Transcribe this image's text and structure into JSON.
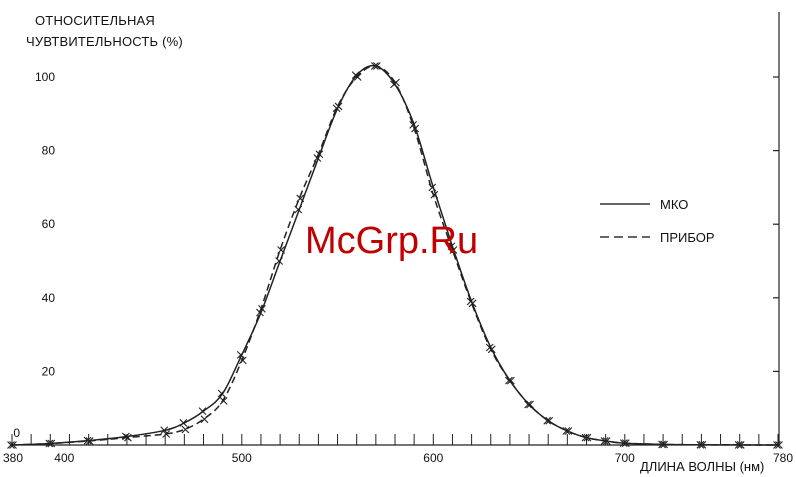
{
  "chart_data": {
    "type": "line",
    "ylabel_lines": [
      "ОТНОСИТЕЛЬНАЯ",
      "ЧУВТВИТЕЛЬНОСТЬ (%)"
    ],
    "xlabel": "ДЛИНА ВОЛНЫ (нм)",
    "xlim": [
      380,
      780
    ],
    "ylim": [
      0,
      100
    ],
    "x_ticks": [
      380,
      400,
      500,
      600,
      700,
      780
    ],
    "y_ticks": [
      0,
      20,
      40,
      60,
      80,
      100
    ],
    "legend_position": "right",
    "grid": false,
    "x": [
      380,
      400,
      420,
      440,
      460,
      470,
      480,
      490,
      500,
      510,
      520,
      530,
      540,
      550,
      560,
      570,
      580,
      590,
      600,
      610,
      620,
      630,
      640,
      650,
      660,
      670,
      680,
      690,
      700,
      720,
      740,
      760,
      780
    ],
    "series": [
      {
        "name": "МКО",
        "style": "solid",
        "values": [
          0.0,
          0.4,
          1.2,
          2.3,
          4.0,
          6.0,
          9.2,
          14.0,
          24.5,
          36.0,
          50.0,
          64.0,
          78.0,
          91.5,
          100.5,
          103.0,
          98.0,
          87.0,
          70.0,
          54.0,
          39.0,
          26.5,
          17.5,
          11.0,
          6.6,
          3.8,
          2.0,
          1.1,
          0.5,
          0.15,
          0.05,
          0.02,
          0.0
        ]
      },
      {
        "name": "ПРИБОР",
        "style": "dashed",
        "values": [
          0.0,
          0.4,
          1.1,
          2.0,
          3.0,
          4.2,
          7.0,
          12.0,
          23.0,
          37.0,
          53.0,
          67.0,
          79.0,
          92.0,
          100.0,
          103.0,
          98.5,
          86.0,
          68.0,
          53.0,
          38.5,
          26.0,
          17.5,
          11.0,
          6.6,
          3.8,
          2.0,
          1.1,
          0.5,
          0.15,
          0.05,
          0.02,
          0.0
        ]
      }
    ]
  },
  "watermark": "McGrp.Ru"
}
